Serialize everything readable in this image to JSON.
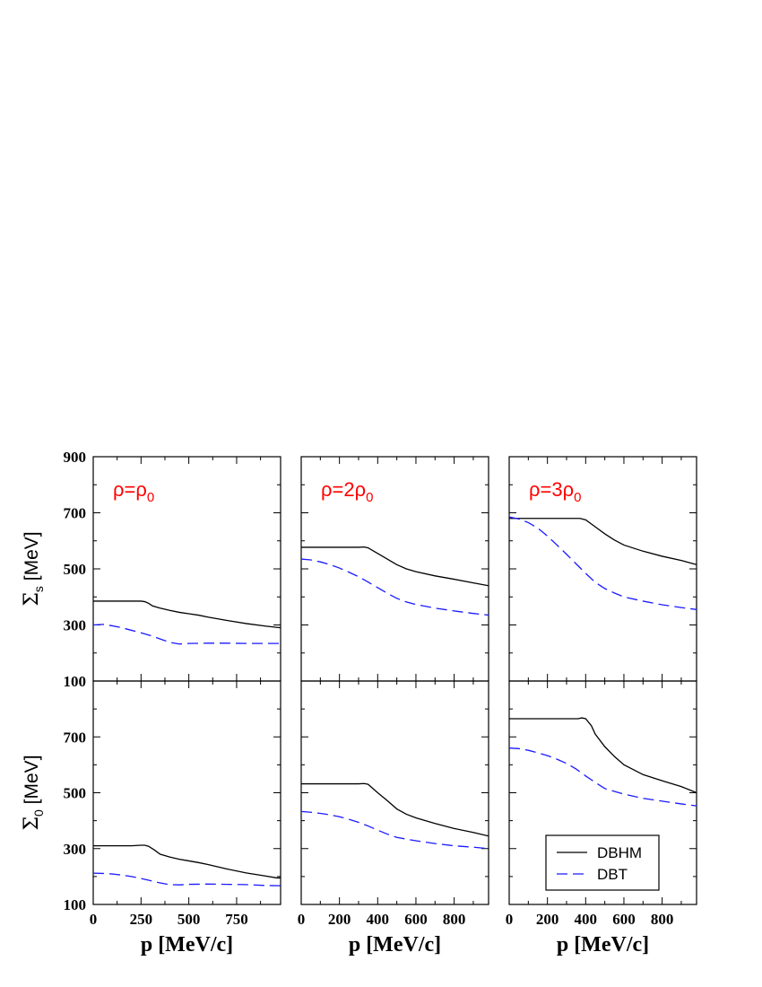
{
  "chart_data": {
    "type": "line",
    "colors": {
      "DBHM": "#000000",
      "DBT": "#1a1aff",
      "label": "#ff0000"
    },
    "legend": {
      "placement": "bottom-right of bottom-right panel",
      "entries": [
        "DBHM",
        "DBT"
      ]
    },
    "rows": [
      {
        "ylabel_symbol": "Σ",
        "ylabel_sub": "s",
        "ylabel_unit": "[MeV]",
        "ylim": [
          100,
          900
        ],
        "yticks": [
          100,
          300,
          500,
          700,
          900
        ]
      },
      {
        "ylabel_symbol": "Σ",
        "ylabel_sub": "0",
        "ylabel_unit": "[MeV]",
        "ylim": [
          100,
          900
        ],
        "yticks": [
          100,
          300,
          500,
          700
        ]
      }
    ],
    "columns": [
      {
        "label_main": "ρ=ρ",
        "label_sub": "0",
        "xlim": [
          0,
          980
        ],
        "xticks": [
          0,
          250,
          500,
          750
        ],
        "xlabel": "p [MeV/c]",
        "top": {
          "series": [
            {
              "name": "DBHM",
              "x": [
                0,
                100,
                200,
                250,
                270,
                290,
                310,
                350,
                400,
                450,
                500,
                550,
                600,
                700,
                800,
                900,
                980
              ],
              "y": [
                385,
                385,
                385,
                385,
                383,
                377,
                368,
                360,
                352,
                345,
                340,
                335,
                328,
                316,
                305,
                296,
                290
              ]
            },
            {
              "name": "DBT",
              "x": [
                0,
                50,
                100,
                150,
                200,
                250,
                300,
                350,
                400,
                450,
                500,
                600,
                700,
                800,
                900,
                980
              ],
              "y": [
                300,
                302,
                297,
                290,
                281,
                272,
                262,
                250,
                238,
                232,
                234,
                235,
                235,
                234,
                234,
                234
              ]
            }
          ]
        },
        "bottom": {
          "series": [
            {
              "name": "DBHM",
              "x": [
                0,
                100,
                200,
                250,
                270,
                290,
                320,
                350,
                400,
                450,
                500,
                550,
                600,
                700,
                800,
                900,
                960,
                980
              ],
              "y": [
                310,
                310,
                310,
                312,
                312,
                308,
                295,
                280,
                270,
                262,
                256,
                250,
                243,
                227,
                213,
                202,
                195,
                195
              ]
            },
            {
              "name": "DBT",
              "x": [
                0,
                50,
                100,
                150,
                200,
                250,
                300,
                350,
                400,
                450,
                500,
                600,
                700,
                800,
                900,
                980
              ],
              "y": [
                212,
                211,
                209,
                205,
                200,
                193,
                185,
                177,
                171,
                170,
                172,
                173,
                172,
                171,
                168,
                167
              ]
            }
          ]
        }
      },
      {
        "label_main": "ρ=2ρ",
        "label_sub": "0",
        "xlim": [
          0,
          980
        ],
        "xticks": [
          0,
          200,
          400,
          600,
          800
        ],
        "xlabel": "p [MeV/c]",
        "top": {
          "series": [
            {
              "name": "DBHM",
              "x": [
                0,
                100,
                200,
                300,
                330,
                350,
                400,
                450,
                500,
                550,
                600,
                700,
                800,
                900,
                980
              ],
              "y": [
                577,
                577,
                577,
                577,
                578,
                575,
                555,
                535,
                515,
                500,
                490,
                475,
                463,
                450,
                440
              ]
            },
            {
              "name": "DBT",
              "x": [
                0,
                50,
                100,
                150,
                200,
                250,
                300,
                350,
                400,
                450,
                500,
                550,
                600,
                700,
                800,
                900,
                980
              ],
              "y": [
                535,
                532,
                525,
                515,
                503,
                488,
                472,
                453,
                433,
                413,
                395,
                382,
                373,
                360,
                350,
                341,
                335
              ]
            }
          ]
        },
        "bottom": {
          "series": [
            {
              "name": "DBHM",
              "x": [
                0,
                100,
                200,
                300,
                330,
                350,
                380,
                400,
                450,
                500,
                550,
                600,
                700,
                800,
                900,
                980
              ],
              "y": [
                532,
                532,
                532,
                532,
                533,
                530,
                512,
                500,
                472,
                442,
                423,
                410,
                390,
                372,
                358,
                345
              ]
            },
            {
              "name": "DBT",
              "x": [
                0,
                50,
                100,
                150,
                200,
                250,
                300,
                350,
                400,
                450,
                500,
                550,
                600,
                700,
                800,
                900,
                980
              ],
              "y": [
                433,
                430,
                426,
                421,
                414,
                405,
                394,
                381,
                366,
                352,
                340,
                334,
                328,
                318,
                310,
                305,
                300
              ]
            }
          ]
        }
      },
      {
        "label_main": "ρ=3ρ",
        "label_sub": "0",
        "xlim": [
          0,
          980
        ],
        "xticks": [
          0,
          200,
          400,
          600,
          800
        ],
        "xlabel": "p [MeV/c]",
        "top": {
          "series": [
            {
              "name": "DBHM",
              "x": [
                0,
                100,
                200,
                300,
                370,
                400,
                450,
                500,
                550,
                600,
                700,
                800,
                900,
                980
              ],
              "y": [
                680,
                680,
                680,
                680,
                680,
                675,
                650,
                625,
                603,
                585,
                563,
                545,
                530,
                515
              ]
            },
            {
              "name": "DBT",
              "x": [
                0,
                50,
                100,
                150,
                200,
                250,
                300,
                350,
                400,
                450,
                500,
                550,
                600,
                700,
                800,
                900,
                980
              ],
              "y": [
                685,
                678,
                665,
                645,
                617,
                585,
                552,
                518,
                484,
                452,
                430,
                414,
                400,
                385,
                372,
                362,
                355
              ]
            }
          ]
        },
        "bottom": {
          "series": [
            {
              "name": "DBHM",
              "x": [
                0,
                100,
                200,
                300,
                360,
                380,
                400,
                430,
                450,
                500,
                550,
                600,
                700,
                800,
                900,
                980
              ],
              "y": [
                765,
                765,
                765,
                765,
                765,
                768,
                765,
                740,
                710,
                665,
                630,
                600,
                565,
                543,
                522,
                500
              ]
            },
            {
              "name": "DBT",
              "x": [
                0,
                50,
                100,
                150,
                200,
                250,
                300,
                350,
                400,
                450,
                500,
                550,
                600,
                700,
                800,
                900,
                980
              ],
              "y": [
                660,
                658,
                652,
                643,
                633,
                620,
                605,
                585,
                560,
                537,
                515,
                505,
                495,
                480,
                470,
                460,
                453
              ]
            }
          ]
        }
      }
    ]
  }
}
